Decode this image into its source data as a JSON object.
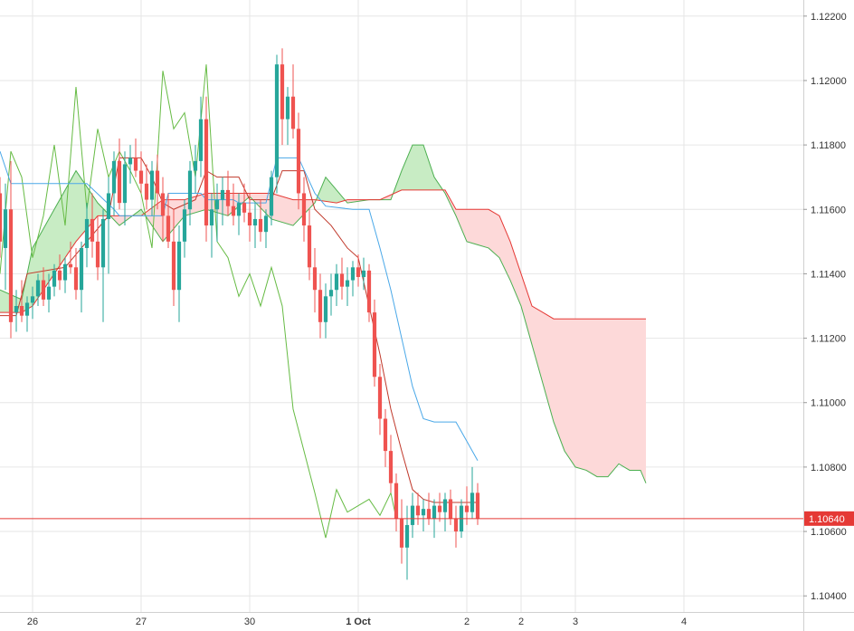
{
  "colors": {
    "background": "#ffffff",
    "grid": "#e6e6e6",
    "axis_text": "#333333",
    "bull": "#26a69a",
    "bear": "#ef5350",
    "tenkan": "#4aa8e8",
    "kijun": "#c0392b",
    "chikou": "#66bb44",
    "span_a": "#4caf50",
    "span_b": "#e53935",
    "cloud_bull": "#c8ecc4",
    "cloud_bear": "#fdd9d9",
    "price_line": "#e53935"
  },
  "chart_data": {
    "type": "candlestick",
    "indicator": "ichimoku",
    "y_ticks": [
      "1.10400",
      "1.10600",
      "1.10800",
      "1.11000",
      "1.11200",
      "1.11400",
      "1.11600",
      "1.11800",
      "1.12000",
      "1.12200"
    ],
    "x_ticks": [
      {
        "label": "26",
        "x": 0
      },
      {
        "label": "27",
        "x": 20
      },
      {
        "label": "30",
        "x": 40
      },
      {
        "label": "1 Oct",
        "x": 60
      },
      {
        "label": "2",
        "x": 80
      },
      {
        "label": "2",
        "x": 90
      },
      {
        "label": "3",
        "x": 100
      },
      {
        "label": "4",
        "x": 120
      }
    ],
    "ylim": [
      1.1035,
      1.1225
    ],
    "xlim": [
      -6,
      142
    ],
    "grid": true,
    "current_price": "1.10640",
    "current_price_value": 1.1064,
    "candles": [
      [
        -6,
        1.1165,
        1.117,
        1.1145,
        1.115
      ],
      [
        -5,
        1.1148,
        1.1168,
        1.1135,
        1.116
      ],
      [
        -4,
        1.116,
        1.1175,
        1.112,
        1.1125
      ],
      [
        -3,
        1.1128,
        1.1135,
        1.1122,
        1.113
      ],
      [
        -2,
        1.113,
        1.1138,
        1.1125,
        1.1127
      ],
      [
        -1,
        1.1127,
        1.1133,
        1.1122,
        1.1131
      ],
      [
        0,
        1.1131,
        1.1136,
        1.1126,
        1.1133
      ],
      [
        1,
        1.1133,
        1.114,
        1.113,
        1.1138
      ],
      [
        2,
        1.1138,
        1.1142,
        1.113,
        1.1132
      ],
      [
        3,
        1.1132,
        1.114,
        1.1128,
        1.1136
      ],
      [
        4,
        1.1136,
        1.1143,
        1.1133,
        1.1141
      ],
      [
        5,
        1.1141,
        1.1146,
        1.1135,
        1.1138
      ],
      [
        6,
        1.1138,
        1.1145,
        1.1134,
        1.1143
      ],
      [
        7,
        1.1143,
        1.115,
        1.114,
        1.1142
      ],
      [
        8,
        1.1142,
        1.1148,
        1.1132,
        1.1135
      ],
      [
        9,
        1.1135,
        1.115,
        1.1128,
        1.1148
      ],
      [
        10,
        1.1148,
        1.1162,
        1.1142,
        1.1157
      ],
      [
        11,
        1.1157,
        1.1165,
        1.1145,
        1.115
      ],
      [
        12,
        1.115,
        1.1158,
        1.1138,
        1.1142
      ],
      [
        13,
        1.1142,
        1.116,
        1.1125,
        1.1157
      ],
      [
        14,
        1.1157,
        1.117,
        1.114,
        1.1165
      ],
      [
        15,
        1.1165,
        1.1178,
        1.1158,
        1.1175
      ],
      [
        16,
        1.1175,
        1.1182,
        1.116,
        1.1162
      ],
      [
        17,
        1.1162,
        1.1178,
        1.1155,
        1.1174
      ],
      [
        18,
        1.1174,
        1.118,
        1.1168,
        1.1176
      ],
      [
        19,
        1.1176,
        1.1182,
        1.117,
        1.1172
      ],
      [
        20,
        1.1172,
        1.1178,
        1.1165,
        1.1168
      ],
      [
        21,
        1.1168,
        1.1174,
        1.116,
        1.1163
      ],
      [
        22,
        1.1163,
        1.1175,
        1.1158,
        1.1172
      ],
      [
        23,
        1.1172,
        1.1177,
        1.116,
        1.1165
      ],
      [
        24,
        1.1165,
        1.117,
        1.115,
        1.1158
      ],
      [
        25,
        1.1158,
        1.1165,
        1.1148,
        1.115
      ],
      [
        26,
        1.115,
        1.116,
        1.113,
        1.1135
      ],
      [
        27,
        1.1135,
        1.1155,
        1.1125,
        1.115
      ],
      [
        28,
        1.115,
        1.1163,
        1.1145,
        1.116
      ],
      [
        29,
        1.116,
        1.1175,
        1.1155,
        1.1172
      ],
      [
        30,
        1.1172,
        1.118,
        1.1165,
        1.1175
      ],
      [
        31,
        1.1175,
        1.1195,
        1.117,
        1.1188
      ],
      [
        32,
        1.1188,
        1.1195,
        1.115,
        1.1155
      ],
      [
        33,
        1.1155,
        1.1165,
        1.1145,
        1.116
      ],
      [
        34,
        1.116,
        1.1168,
        1.115,
        1.1163
      ],
      [
        35,
        1.1163,
        1.117,
        1.1155,
        1.1166
      ],
      [
        36,
        1.1166,
        1.1172,
        1.1158,
        1.1161
      ],
      [
        37,
        1.1161,
        1.1168,
        1.1155,
        1.1158
      ],
      [
        38,
        1.1158,
        1.1165,
        1.1152,
        1.1162
      ],
      [
        39,
        1.1162,
        1.1168,
        1.1156,
        1.1159
      ],
      [
        40,
        1.1159,
        1.1165,
        1.115,
        1.1155
      ],
      [
        41,
        1.1155,
        1.1162,
        1.1148,
        1.1157
      ],
      [
        42,
        1.1157,
        1.1163,
        1.115,
        1.1153
      ],
      [
        43,
        1.1153,
        1.116,
        1.1148,
        1.1158
      ],
      [
        44,
        1.1158,
        1.1172,
        1.1155,
        1.117
      ],
      [
        45,
        1.117,
        1.1208,
        1.1165,
        1.1205
      ],
      [
        46,
        1.1205,
        1.121,
        1.118,
        1.1188
      ],
      [
        47,
        1.1188,
        1.1198,
        1.118,
        1.1195
      ],
      [
        48,
        1.1195,
        1.1205,
        1.1182,
        1.1185
      ],
      [
        49,
        1.1185,
        1.119,
        1.116,
        1.1165
      ],
      [
        50,
        1.1165,
        1.117,
        1.115,
        1.1155
      ],
      [
        51,
        1.1155,
        1.116,
        1.1138,
        1.1142
      ],
      [
        52,
        1.1142,
        1.1148,
        1.1128,
        1.1135
      ],
      [
        53,
        1.1135,
        1.114,
        1.112,
        1.1125
      ],
      [
        54,
        1.1125,
        1.1137,
        1.112,
        1.1133
      ],
      [
        55,
        1.1133,
        1.114,
        1.1127,
        1.1135
      ],
      [
        56,
        1.1135,
        1.1143,
        1.113,
        1.114
      ],
      [
        57,
        1.114,
        1.1145,
        1.1132,
        1.1136
      ],
      [
        58,
        1.1136,
        1.1142,
        1.113,
        1.1138
      ],
      [
        59,
        1.1138,
        1.1144,
        1.1133,
        1.1142
      ],
      [
        60,
        1.1142,
        1.1146,
        1.1136,
        1.1139
      ],
      [
        61,
        1.1139,
        1.1145,
        1.1135,
        1.1141
      ],
      [
        62,
        1.1141,
        1.1143,
        1.1125,
        1.1128
      ],
      [
        63,
        1.1128,
        1.1132,
        1.1105,
        1.1108
      ],
      [
        64,
        1.1108,
        1.1112,
        1.109,
        1.1095
      ],
      [
        65,
        1.1095,
        1.1098,
        1.108,
        1.1085
      ],
      [
        66,
        1.1085,
        1.109,
        1.1072,
        1.1075
      ],
      [
        67,
        1.1075,
        1.1078,
        1.106,
        1.1064
      ],
      [
        68,
        1.1064,
        1.107,
        1.105,
        1.1055
      ],
      [
        69,
        1.1055,
        1.1068,
        1.1045,
        1.1062
      ],
      [
        70,
        1.1062,
        1.1072,
        1.1058,
        1.1068
      ],
      [
        71,
        1.1068,
        1.1072,
        1.1062,
        1.1065
      ],
      [
        72,
        1.1065,
        1.107,
        1.106,
        1.1067
      ],
      [
        73,
        1.1067,
        1.1072,
        1.1062,
        1.1064
      ],
      [
        74,
        1.1064,
        1.107,
        1.1058,
        1.1068
      ],
      [
        75,
        1.1068,
        1.1072,
        1.1063,
        1.1066
      ],
      [
        76,
        1.1066,
        1.1072,
        1.106,
        1.107
      ],
      [
        77,
        1.107,
        1.1073,
        1.1062,
        1.1064
      ],
      [
        78,
        1.1064,
        1.1068,
        1.1055,
        1.106
      ],
      [
        79,
        1.106,
        1.107,
        1.1058,
        1.1068
      ],
      [
        80,
        1.1068,
        1.1074,
        1.1062,
        1.1066
      ],
      [
        81,
        1.1066,
        1.108,
        1.1064,
        1.1072
      ],
      [
        82,
        1.1072,
        1.1075,
        1.1062,
        1.1064
      ]
    ],
    "tenkan": [
      [
        -6,
        1.1178
      ],
      [
        -4,
        1.1168
      ],
      [
        10,
        1.1168
      ],
      [
        15,
        1.116
      ],
      [
        16,
        1.1158
      ],
      [
        24,
        1.1158
      ],
      [
        25,
        1.1165
      ],
      [
        31,
        1.1165
      ],
      [
        32,
        1.1163
      ],
      [
        37,
        1.1163
      ],
      [
        38,
        1.1162
      ],
      [
        43,
        1.1162
      ],
      [
        45,
        1.1176
      ],
      [
        49,
        1.1176
      ],
      [
        52,
        1.1165
      ],
      [
        54,
        1.1161
      ],
      [
        59,
        1.116
      ],
      [
        60,
        1.116
      ],
      [
        62,
        1.116
      ],
      [
        64,
        1.1148
      ],
      [
        66,
        1.1135
      ],
      [
        68,
        1.112
      ],
      [
        70,
        1.1105
      ],
      [
        72,
        1.1095
      ],
      [
        74,
        1.1094
      ],
      [
        78,
        1.1094
      ],
      [
        80,
        1.1088
      ],
      [
        82,
        1.1082
      ]
    ],
    "kijun": [
      [
        -6,
        1.1127
      ],
      [
        -3,
        1.1127
      ],
      [
        -1,
        1.114
      ],
      [
        6,
        1.1142
      ],
      [
        10,
        1.115
      ],
      [
        14,
        1.1158
      ],
      [
        16,
        1.1176
      ],
      [
        20,
        1.1176
      ],
      [
        22,
        1.117
      ],
      [
        24,
        1.1162
      ],
      [
        26,
        1.116
      ],
      [
        30,
        1.1163
      ],
      [
        32,
        1.1172
      ],
      [
        34,
        1.117
      ],
      [
        38,
        1.117
      ],
      [
        40,
        1.1163
      ],
      [
        44,
        1.1163
      ],
      [
        46,
        1.1172
      ],
      [
        50,
        1.1172
      ],
      [
        52,
        1.116
      ],
      [
        55,
        1.1155
      ],
      [
        58,
        1.1148
      ],
      [
        60,
        1.1145
      ],
      [
        62,
        1.113
      ],
      [
        64,
        1.1115
      ],
      [
        66,
        1.1098
      ],
      [
        68,
        1.1085
      ],
      [
        70,
        1.1073
      ],
      [
        72,
        1.107
      ],
      [
        74,
        1.1069
      ],
      [
        82,
        1.1069
      ]
    ],
    "chikou": [
      [
        -6,
        1.114
      ],
      [
        -4,
        1.1178
      ],
      [
        -2,
        1.117
      ],
      [
        0,
        1.1145
      ],
      [
        2,
        1.1158
      ],
      [
        4,
        1.118
      ],
      [
        6,
        1.1155
      ],
      [
        8,
        1.1198
      ],
      [
        10,
        1.116
      ],
      [
        12,
        1.1185
      ],
      [
        14,
        1.117
      ],
      [
        16,
        1.1178
      ],
      [
        18,
        1.1172
      ],
      [
        20,
        1.1165
      ],
      [
        22,
        1.1148
      ],
      [
        24,
        1.1203
      ],
      [
        26,
        1.1185
      ],
      [
        28,
        1.119
      ],
      [
        30,
        1.117
      ],
      [
        32,
        1.1205
      ],
      [
        34,
        1.115
      ],
      [
        36,
        1.1145
      ],
      [
        38,
        1.1133
      ],
      [
        40,
        1.114
      ],
      [
        42,
        1.113
      ],
      [
        44,
        1.1142
      ],
      [
        46,
        1.113
      ],
      [
        48,
        1.1098
      ],
      [
        50,
        1.1085
      ],
      [
        52,
        1.1072
      ],
      [
        54,
        1.1058
      ],
      [
        56,
        1.1073
      ],
      [
        58,
        1.1066
      ],
      [
        60,
        1.1068
      ],
      [
        62,
        1.107
      ],
      [
        64,
        1.1065
      ],
      [
        66,
        1.1072
      ],
      [
        67,
        1.1064
      ]
    ],
    "span_a": [
      [
        -6,
        1.1135
      ],
      [
        -2,
        1.1132
      ],
      [
        0,
        1.1148
      ],
      [
        4,
        1.116
      ],
      [
        8,
        1.1172
      ],
      [
        12,
        1.1162
      ],
      [
        16,
        1.1155
      ],
      [
        20,
        1.116
      ],
      [
        24,
        1.115
      ],
      [
        28,
        1.1158
      ],
      [
        32,
        1.116
      ],
      [
        36,
        1.1158
      ],
      [
        40,
        1.1164
      ],
      [
        44,
        1.1157
      ],
      [
        48,
        1.1155
      ],
      [
        52,
        1.1162
      ],
      [
        54,
        1.117
      ],
      [
        58,
        1.1162
      ],
      [
        62,
        1.1163
      ],
      [
        66,
        1.1163
      ],
      [
        68,
        1.1172
      ],
      [
        70,
        1.118
      ],
      [
        72,
        1.118
      ],
      [
        74,
        1.117
      ],
      [
        76,
        1.1165
      ],
      [
        78,
        1.1158
      ],
      [
        80,
        1.115
      ],
      [
        82,
        1.1149
      ],
      [
        84,
        1.1148
      ],
      [
        86,
        1.1145
      ],
      [
        88,
        1.1138
      ],
      [
        90,
        1.113
      ],
      [
        92,
        1.1118
      ],
      [
        94,
        1.1106
      ],
      [
        96,
        1.1094
      ],
      [
        98,
        1.1085
      ],
      [
        100,
        1.108
      ],
      [
        102,
        1.1079
      ],
      [
        104,
        1.1077
      ],
      [
        106,
        1.1077
      ],
      [
        108,
        1.1081
      ],
      [
        110,
        1.1079
      ],
      [
        112,
        1.1079
      ],
      [
        113,
        1.1075
      ]
    ],
    "span_b": [
      [
        -6,
        1.1128
      ],
      [
        -2,
        1.1128
      ],
      [
        0,
        1.113
      ],
      [
        4,
        1.114
      ],
      [
        8,
        1.115
      ],
      [
        12,
        1.1158
      ],
      [
        16,
        1.1158
      ],
      [
        20,
        1.1158
      ],
      [
        24,
        1.1163
      ],
      [
        28,
        1.1163
      ],
      [
        32,
        1.1165
      ],
      [
        36,
        1.1165
      ],
      [
        40,
        1.1165
      ],
      [
        44,
        1.1165
      ],
      [
        48,
        1.1163
      ],
      [
        52,
        1.1163
      ],
      [
        56,
        1.1162
      ],
      [
        58,
        1.1163
      ],
      [
        60,
        1.1163
      ],
      [
        64,
        1.1163
      ],
      [
        68,
        1.1166
      ],
      [
        72,
        1.1166
      ],
      [
        76,
        1.1166
      ],
      [
        78,
        1.116
      ],
      [
        80,
        1.116
      ],
      [
        82,
        1.116
      ],
      [
        84,
        1.116
      ],
      [
        86,
        1.1158
      ],
      [
        88,
        1.115
      ],
      [
        90,
        1.114
      ],
      [
        92,
        1.113
      ],
      [
        94,
        1.1128
      ],
      [
        96,
        1.1126
      ],
      [
        100,
        1.1126
      ],
      [
        113,
        1.1126
      ]
    ]
  }
}
